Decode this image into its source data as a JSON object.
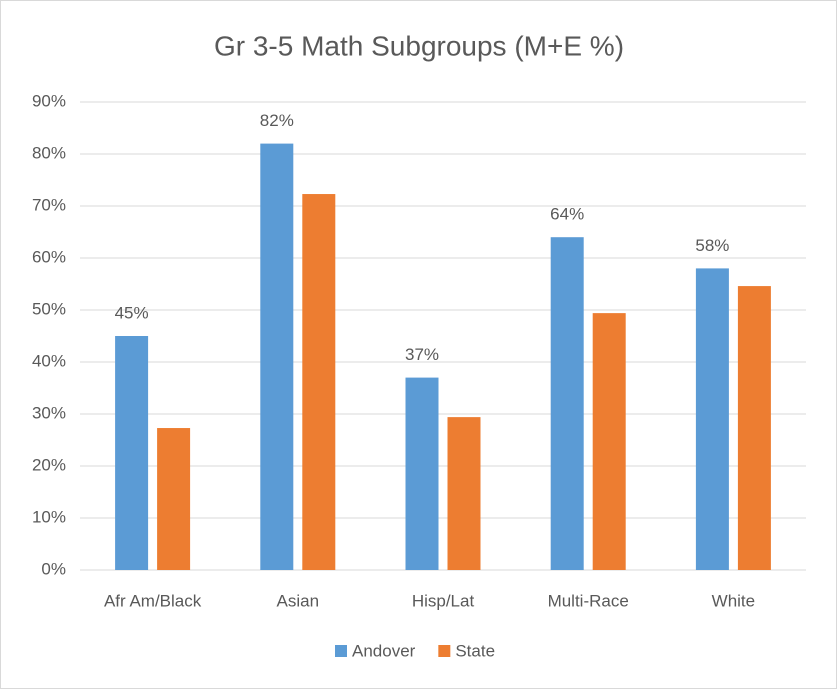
{
  "chart_data": {
    "type": "bar",
    "title": "Gr 3-5 Math Subgroups (M+E %)",
    "categories": [
      "Afr Am/Black",
      "Asian",
      "Hisp/Lat",
      "Multi-Race",
      "White"
    ],
    "series": [
      {
        "name": "Andover",
        "color": "#5b9bd5",
        "values": [
          45,
          82,
          37,
          64,
          58
        ],
        "value_labels": [
          "45%",
          "82%",
          "37%",
          "64%",
          "58%"
        ]
      },
      {
        "name": "State",
        "color": "#ed7d31",
        "values": [
          27.3,
          72.3,
          29.4,
          49.4,
          54.6
        ]
      }
    ],
    "ylim": [
      0,
      90
    ],
    "yticks": [
      {
        "value": 0,
        "label": "0%"
      },
      {
        "value": 10,
        "label": "10%"
      },
      {
        "value": 20,
        "label": "20%"
      },
      {
        "value": 30,
        "label": "30%"
      },
      {
        "value": 40,
        "label": "40%"
      },
      {
        "value": 50,
        "label": "50%"
      },
      {
        "value": 60,
        "label": "60%"
      },
      {
        "value": 70,
        "label": "70%"
      },
      {
        "value": 80,
        "label": "80%"
      },
      {
        "value": 90,
        "label": "90%"
      }
    ],
    "grid": true,
    "legend": "bottom"
  }
}
